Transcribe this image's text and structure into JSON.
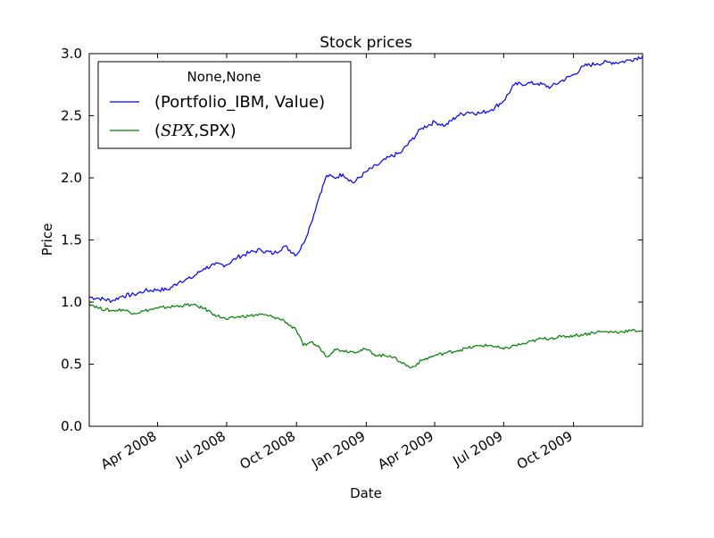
{
  "chart_data": {
    "type": "line",
    "title": "Stock prices",
    "xlabel": "Date",
    "ylabel": "Price",
    "x_range": [
      "2008-01-02",
      "2009-12-31"
    ],
    "ylim": [
      0.0,
      3.0
    ],
    "yticks": [
      {
        "value": 0.0,
        "label": "0.0"
      },
      {
        "value": 0.5,
        "label": "0.5"
      },
      {
        "value": 1.0,
        "label": "1.0"
      },
      {
        "value": 1.5,
        "label": "1.5"
      },
      {
        "value": 2.0,
        "label": "2.0"
      },
      {
        "value": 2.5,
        "label": "2.5"
      },
      {
        "value": 3.0,
        "label": "3.0"
      }
    ],
    "xticks": [
      {
        "value": "2008-04-01",
        "label": "Apr 2008"
      },
      {
        "value": "2008-07-01",
        "label": "Jul 2008"
      },
      {
        "value": "2008-10-01",
        "label": "Oct 2008"
      },
      {
        "value": "2009-01-01",
        "label": "Jan 2009"
      },
      {
        "value": "2009-04-01",
        "label": "Apr 2009"
      },
      {
        "value": "2009-07-01",
        "label": "Jul 2009"
      },
      {
        "value": "2009-10-01",
        "label": "Oct 2009"
      }
    ],
    "grid": false,
    "legend": {
      "title": "None,None",
      "placement": "upper-left",
      "entries": [
        {
          "label_prefix": "(Portfolio_IBM, Value)",
          "label_math": "",
          "label_suffix": "",
          "color": "#0000ff"
        },
        {
          "label_prefix": "(",
          "label_math": "SPX",
          "label_suffix": ",SPX)",
          "color": "#008000"
        }
      ]
    },
    "series": [
      {
        "name": "(Portfolio_IBM, Value)",
        "color": "#0000ff",
        "x": [
          "2008-01-02",
          "2008-01-15",
          "2008-02-01",
          "2008-02-15",
          "2008-03-01",
          "2008-03-15",
          "2008-04-01",
          "2008-04-15",
          "2008-05-01",
          "2008-05-15",
          "2008-06-01",
          "2008-06-15",
          "2008-07-01",
          "2008-07-15",
          "2008-08-01",
          "2008-08-15",
          "2008-09-01",
          "2008-09-15",
          "2008-10-01",
          "2008-10-10",
          "2008-10-20",
          "2008-11-01",
          "2008-11-10",
          "2008-11-20",
          "2008-12-01",
          "2008-12-15",
          "2009-01-01",
          "2009-01-15",
          "2009-02-01",
          "2009-02-15",
          "2009-03-01",
          "2009-03-15",
          "2009-04-01",
          "2009-04-15",
          "2009-05-01",
          "2009-05-15",
          "2009-06-01",
          "2009-06-15",
          "2009-07-01",
          "2009-07-15",
          "2009-08-01",
          "2009-08-15",
          "2009-09-01",
          "2009-09-15",
          "2009-10-01",
          "2009-10-15",
          "2009-11-01",
          "2009-11-15",
          "2009-12-01",
          "2009-12-15",
          "2009-12-31"
        ],
        "values": [
          1.04,
          1.03,
          1.01,
          1.05,
          1.06,
          1.09,
          1.1,
          1.1,
          1.17,
          1.19,
          1.27,
          1.3,
          1.3,
          1.36,
          1.4,
          1.42,
          1.39,
          1.45,
          1.38,
          1.47,
          1.63,
          1.87,
          2.02,
          2.0,
          2.03,
          1.96,
          2.05,
          2.1,
          2.17,
          2.2,
          2.3,
          2.4,
          2.45,
          2.42,
          2.5,
          2.53,
          2.52,
          2.55,
          2.62,
          2.75,
          2.76,
          2.76,
          2.73,
          2.78,
          2.83,
          2.9,
          2.92,
          2.93,
          2.93,
          2.95,
          2.98
        ]
      },
      {
        "name": "(SPX,SPX)",
        "color": "#008000",
        "x": [
          "2008-01-02",
          "2008-01-15",
          "2008-02-01",
          "2008-02-15",
          "2008-03-01",
          "2008-03-15",
          "2008-04-01",
          "2008-04-15",
          "2008-05-01",
          "2008-05-15",
          "2008-06-01",
          "2008-06-15",
          "2008-07-01",
          "2008-07-15",
          "2008-08-01",
          "2008-08-15",
          "2008-09-01",
          "2008-09-15",
          "2008-10-01",
          "2008-10-10",
          "2008-10-20",
          "2008-11-01",
          "2008-11-10",
          "2008-11-20",
          "2008-12-01",
          "2008-12-15",
          "2009-01-01",
          "2009-01-15",
          "2009-02-01",
          "2009-02-15",
          "2009-03-01",
          "2009-03-15",
          "2009-04-01",
          "2009-04-15",
          "2009-05-01",
          "2009-05-15",
          "2009-06-01",
          "2009-06-15",
          "2009-07-01",
          "2009-07-15",
          "2009-08-01",
          "2009-08-15",
          "2009-09-01",
          "2009-09-15",
          "2009-10-01",
          "2009-10-15",
          "2009-11-01",
          "2009-11-15",
          "2009-12-01",
          "2009-12-15",
          "2009-12-31"
        ],
        "values": [
          0.99,
          0.95,
          0.93,
          0.94,
          0.91,
          0.93,
          0.95,
          0.96,
          0.97,
          0.98,
          0.95,
          0.9,
          0.86,
          0.88,
          0.89,
          0.9,
          0.88,
          0.85,
          0.77,
          0.65,
          0.68,
          0.63,
          0.56,
          0.62,
          0.61,
          0.6,
          0.62,
          0.57,
          0.57,
          0.52,
          0.47,
          0.53,
          0.57,
          0.59,
          0.61,
          0.63,
          0.65,
          0.65,
          0.62,
          0.65,
          0.67,
          0.7,
          0.71,
          0.72,
          0.73,
          0.74,
          0.76,
          0.76,
          0.76,
          0.77,
          0.77
        ]
      }
    ]
  }
}
